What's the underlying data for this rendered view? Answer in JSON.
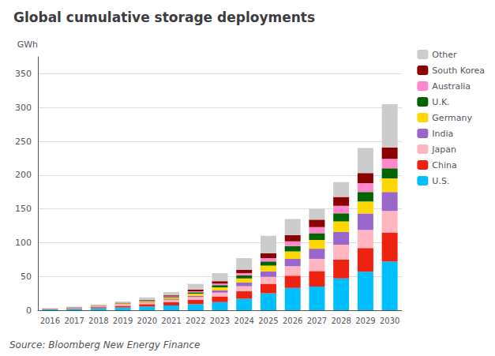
{
  "chart_data": {
    "type": "bar",
    "title": "Global cumulative storage deployments",
    "ylabel": "GWh",
    "annotations": [
      "Source: Bloomberg New Energy Finance"
    ],
    "categories": [
      "2016",
      "2017",
      "2018",
      "2019",
      "2020",
      "2021",
      "2022",
      "2023",
      "2024",
      "2025",
      "2026",
      "2027",
      "2028",
      "2029",
      "2030"
    ],
    "series": [
      {
        "name": "U.S.",
        "color": "#00BFFF",
        "values": [
          1.5,
          2.0,
          3.0,
          4.0,
          5.5,
          7.0,
          9.0,
          12.0,
          17.0,
          25.0,
          33.0,
          35.0,
          47.0,
          57.0,
          72.0
        ]
      },
      {
        "name": "China",
        "color": "#EE2211",
        "values": [
          0.5,
          1.0,
          1.5,
          2.5,
          3.5,
          5.0,
          6.5,
          8.5,
          11.0,
          14.0,
          18.0,
          23.0,
          28.0,
          35.0,
          43.0
        ]
      },
      {
        "name": "Japan",
        "color": "#FFB6C1",
        "values": [
          0.3,
          0.5,
          1.0,
          1.5,
          2.0,
          3.0,
          4.0,
          5.5,
          7.5,
          10.5,
          14.0,
          18.0,
          22.0,
          27.0,
          32.0
        ]
      },
      {
        "name": "India",
        "color": "#9966CC",
        "values": [
          0.1,
          0.2,
          0.3,
          0.5,
          0.8,
          1.2,
          2.0,
          3.5,
          5.5,
          8.0,
          11.0,
          15.0,
          19.0,
          24.0,
          28.0
        ]
      },
      {
        "name": "Germany",
        "color": "#FFD700",
        "values": [
          0.2,
          0.3,
          0.5,
          0.8,
          1.2,
          2.0,
          3.0,
          4.5,
          6.0,
          8.5,
          11.0,
          13.0,
          15.5,
          18.0,
          20.0
        ]
      },
      {
        "name": "U.K.",
        "color": "#006400",
        "values": [
          0.1,
          0.2,
          0.3,
          0.5,
          0.8,
          1.2,
          2.0,
          3.0,
          4.5,
          6.0,
          8.0,
          10.0,
          12.0,
          14.0,
          15.0
        ]
      },
      {
        "name": "Australia",
        "color": "#FF88CC",
        "values": [
          0.1,
          0.2,
          0.3,
          0.5,
          0.7,
          1.0,
          1.5,
          2.5,
          3.5,
          5.0,
          7.0,
          9.0,
          11.0,
          13.0,
          14.0
        ]
      },
      {
        "name": "South Korea",
        "color": "#8B0000",
        "values": [
          0.1,
          0.2,
          0.4,
          0.7,
          1.0,
          1.6,
          2.5,
          3.5,
          5.0,
          7.0,
          9.0,
          11.0,
          13.0,
          15.0,
          17.0
        ]
      },
      {
        "name": "Other",
        "color": "#CCCCCC",
        "values": [
          0.2,
          0.6,
          1.2,
          2.0,
          3.5,
          5.0,
          8.5,
          12.0,
          17.0,
          26.0,
          24.0,
          16.0,
          22.0,
          37.0,
          64.0
        ]
      }
    ],
    "stacked": true,
    "ylim": [
      0,
      375
    ],
    "yticks": [
      0,
      50,
      100,
      150,
      200,
      250,
      300,
      350
    ],
    "grid": true,
    "legend": "upper right"
  }
}
